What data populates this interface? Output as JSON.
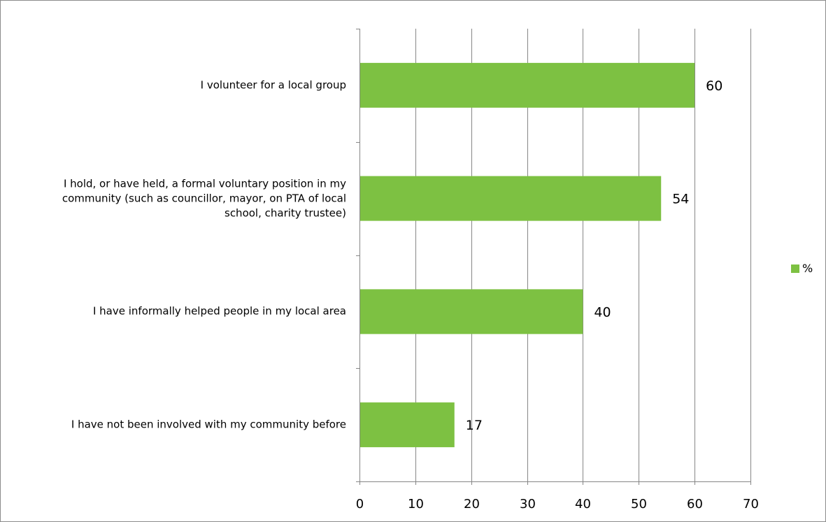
{
  "chart_data": {
    "type": "bar",
    "orientation": "horizontal",
    "categories": [
      "I volunteer for a local group",
      "I hold, or have held, a formal voluntary position in my community (such as councillor, mayor, on PTA of local school, charity trustee)",
      "I have informally helped people in my local area",
      "I have not been involved with my community before"
    ],
    "category_lines": [
      [
        "I volunteer for a local group"
      ],
      [
        "I hold, or have held, a formal voluntary position in my",
        "community (such as councillor, mayor, on PTA of local",
        "school, charity trustee)"
      ],
      [
        "I have informally helped people in my local area"
      ],
      [
        "I have not been involved with my community before"
      ]
    ],
    "series": [
      {
        "name": "%",
        "values": [
          60,
          54,
          40,
          17
        ],
        "color": "#7dc142"
      }
    ],
    "data_labels": [
      "60",
      "54",
      "40",
      "17"
    ],
    "xlim": [
      0,
      70
    ],
    "x_ticks": [
      0,
      10,
      20,
      30,
      40,
      50,
      60,
      70
    ],
    "grid": "vertical",
    "legend": "right",
    "title": "",
    "xlabel": "",
    "ylabel": ""
  },
  "colors": {
    "bar": "#7dc142",
    "grid": "#868686",
    "axis": "#868686",
    "frame": "#8c8c8c"
  }
}
